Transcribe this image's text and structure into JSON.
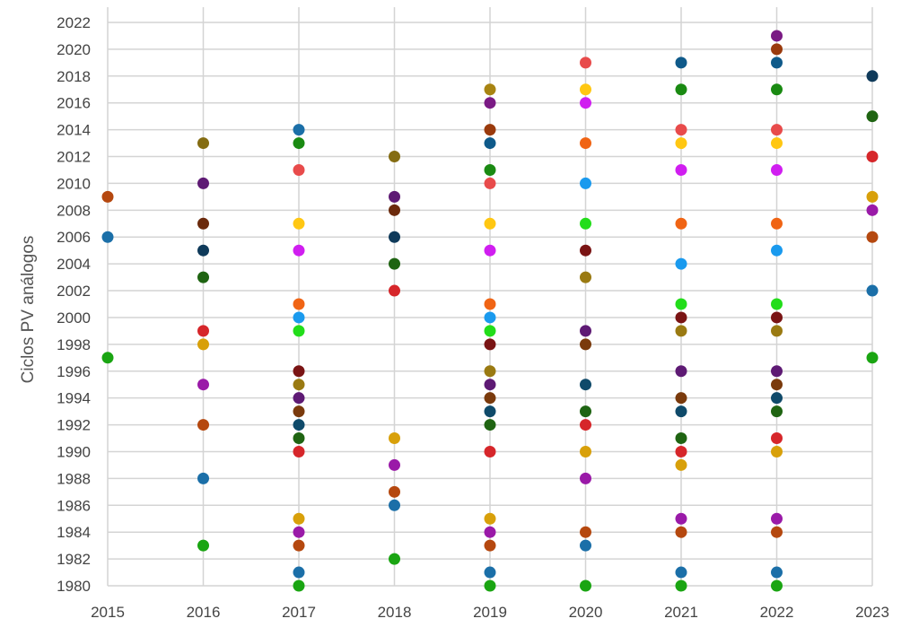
{
  "chart_data": {
    "type": "scatter",
    "title": "",
    "xlabel": "",
    "ylabel": "Ciclos PV análogos",
    "xlim": [
      2015,
      2023
    ],
    "ylim": [
      1980,
      2022
    ],
    "grid": true,
    "legend": "none",
    "x_ticks": [
      "2015",
      "2016",
      "2017",
      "2018",
      "2019",
      "2020",
      "2021",
      "2022",
      "2023"
    ],
    "y_ticks": [
      "1980",
      "1982",
      "1984",
      "1986",
      "1988",
      "1990",
      "1992",
      "1994",
      "1996",
      "1998",
      "2000",
      "2002",
      "2004",
      "2006",
      "2008",
      "2010",
      "2012",
      "2014",
      "2016",
      "2018",
      "2020",
      "2022"
    ],
    "points": [
      {
        "x": 2015,
        "y": 2009,
        "color": "#b5480f"
      },
      {
        "x": 2015,
        "y": 2006,
        "color": "#1b6fa8"
      },
      {
        "x": 2015,
        "y": 1997,
        "color": "#1aa512"
      },
      {
        "x": 2016,
        "y": 2013,
        "color": "#846c12"
      },
      {
        "x": 2016,
        "y": 2010,
        "color": "#5e1a74"
      },
      {
        "x": 2016,
        "y": 2007,
        "color": "#6b2a0c"
      },
      {
        "x": 2016,
        "y": 2005,
        "color": "#0f3a5a"
      },
      {
        "x": 2016,
        "y": 2003,
        "color": "#1f6412"
      },
      {
        "x": 2016,
        "y": 1999,
        "color": "#d6262a"
      },
      {
        "x": 2016,
        "y": 1998,
        "color": "#d8a00a"
      },
      {
        "x": 2016,
        "y": 1995,
        "color": "#9a1aa8"
      },
      {
        "x": 2016,
        "y": 1992,
        "color": "#b5480f"
      },
      {
        "x": 2016,
        "y": 1988,
        "color": "#1b6fa8"
      },
      {
        "x": 2016,
        "y": 1983,
        "color": "#1aa512"
      },
      {
        "x": 2017,
        "y": 2014,
        "color": "#1b6fa8"
      },
      {
        "x": 2017,
        "y": 2013,
        "color": "#1a8a12"
      },
      {
        "x": 2017,
        "y": 2011,
        "color": "#e84b4b"
      },
      {
        "x": 2017,
        "y": 2007,
        "color": "#ffc712"
      },
      {
        "x": 2017,
        "y": 2005,
        "color": "#d01ef0"
      },
      {
        "x": 2017,
        "y": 2001,
        "color": "#f06414"
      },
      {
        "x": 2017,
        "y": 2000,
        "color": "#1a9aee"
      },
      {
        "x": 2017,
        "y": 1999,
        "color": "#22dd1a"
      },
      {
        "x": 2017,
        "y": 1996,
        "color": "#7a1414"
      },
      {
        "x": 2017,
        "y": 1995,
        "color": "#9a7a12"
      },
      {
        "x": 2017,
        "y": 1994,
        "color": "#5e1a74"
      },
      {
        "x": 2017,
        "y": 1993,
        "color": "#7a3a0c"
      },
      {
        "x": 2017,
        "y": 1992,
        "color": "#0f4a6a"
      },
      {
        "x": 2017,
        "y": 1991,
        "color": "#1f6412"
      },
      {
        "x": 2017,
        "y": 1990,
        "color": "#d6262a"
      },
      {
        "x": 2017,
        "y": 1985,
        "color": "#d8a00a"
      },
      {
        "x": 2017,
        "y": 1984,
        "color": "#9a1aa8"
      },
      {
        "x": 2017,
        "y": 1983,
        "color": "#b5480f"
      },
      {
        "x": 2017,
        "y": 1981,
        "color": "#1b6fa8"
      },
      {
        "x": 2017,
        "y": 1980,
        "color": "#1aa512"
      },
      {
        "x": 2018,
        "y": 2012,
        "color": "#846c12"
      },
      {
        "x": 2018,
        "y": 2009,
        "color": "#5e1a74"
      },
      {
        "x": 2018,
        "y": 2008,
        "color": "#6b2a0c"
      },
      {
        "x": 2018,
        "y": 2006,
        "color": "#0f3a5a"
      },
      {
        "x": 2018,
        "y": 2004,
        "color": "#1f6412"
      },
      {
        "x": 2018,
        "y": 2002,
        "color": "#d6262a"
      },
      {
        "x": 2018,
        "y": 1991,
        "color": "#d8a00a"
      },
      {
        "x": 2018,
        "y": 1989,
        "color": "#9a1aa8"
      },
      {
        "x": 2018,
        "y": 1987,
        "color": "#b5480f"
      },
      {
        "x": 2018,
        "y": 1986,
        "color": "#1b6fa8"
      },
      {
        "x": 2018,
        "y": 1982,
        "color": "#1aa512"
      },
      {
        "x": 2019,
        "y": 2017,
        "color": "#a88412"
      },
      {
        "x": 2019,
        "y": 2016,
        "color": "#7a1a84"
      },
      {
        "x": 2019,
        "y": 2014,
        "color": "#9a3a0c"
      },
      {
        "x": 2019,
        "y": 2013,
        "color": "#0f5a8a"
      },
      {
        "x": 2019,
        "y": 2011,
        "color": "#1a8a12"
      },
      {
        "x": 2019,
        "y": 2010,
        "color": "#e84b4b"
      },
      {
        "x": 2019,
        "y": 2007,
        "color": "#ffc712"
      },
      {
        "x": 2019,
        "y": 2005,
        "color": "#d01ef0"
      },
      {
        "x": 2019,
        "y": 2001,
        "color": "#f06414"
      },
      {
        "x": 2019,
        "y": 2000,
        "color": "#1a9aee"
      },
      {
        "x": 2019,
        "y": 1999,
        "color": "#22dd1a"
      },
      {
        "x": 2019,
        "y": 1998,
        "color": "#7a1414"
      },
      {
        "x": 2019,
        "y": 1996,
        "color": "#9a7a12"
      },
      {
        "x": 2019,
        "y": 1995,
        "color": "#5e1a74"
      },
      {
        "x": 2019,
        "y": 1994,
        "color": "#7a3a0c"
      },
      {
        "x": 2019,
        "y": 1993,
        "color": "#0f4a6a"
      },
      {
        "x": 2019,
        "y": 1992,
        "color": "#1f6412"
      },
      {
        "x": 2019,
        "y": 1990,
        "color": "#d6262a"
      },
      {
        "x": 2019,
        "y": 1985,
        "color": "#d8a00a"
      },
      {
        "x": 2019,
        "y": 1984,
        "color": "#9a1aa8"
      },
      {
        "x": 2019,
        "y": 1983,
        "color": "#b5480f"
      },
      {
        "x": 2019,
        "y": 1981,
        "color": "#1b6fa8"
      },
      {
        "x": 2019,
        "y": 1980,
        "color": "#1aa512"
      },
      {
        "x": 2020,
        "y": 2019,
        "color": "#e84b4b"
      },
      {
        "x": 2020,
        "y": 2017,
        "color": "#ffc712"
      },
      {
        "x": 2020,
        "y": 2016,
        "color": "#d01ef0"
      },
      {
        "x": 2020,
        "y": 2013,
        "color": "#f06414"
      },
      {
        "x": 2020,
        "y": 2010,
        "color": "#1a9aee"
      },
      {
        "x": 2020,
        "y": 2007,
        "color": "#22dd1a"
      },
      {
        "x": 2020,
        "y": 2005,
        "color": "#7a1414"
      },
      {
        "x": 2020,
        "y": 2003,
        "color": "#9a7a12"
      },
      {
        "x": 2020,
        "y": 1999,
        "color": "#5e1a74"
      },
      {
        "x": 2020,
        "y": 1998,
        "color": "#7a3a0c"
      },
      {
        "x": 2020,
        "y": 1995,
        "color": "#0f4a6a"
      },
      {
        "x": 2020,
        "y": 1993,
        "color": "#1f6412"
      },
      {
        "x": 2020,
        "y": 1992,
        "color": "#d6262a"
      },
      {
        "x": 2020,
        "y": 1990,
        "color": "#d8a00a"
      },
      {
        "x": 2020,
        "y": 1988,
        "color": "#9a1aa8"
      },
      {
        "x": 2020,
        "y": 1984,
        "color": "#b5480f"
      },
      {
        "x": 2020,
        "y": 1983,
        "color": "#1b6fa8"
      },
      {
        "x": 2020,
        "y": 1980,
        "color": "#1aa512"
      },
      {
        "x": 2021,
        "y": 2019,
        "color": "#0f5a8a"
      },
      {
        "x": 2021,
        "y": 2017,
        "color": "#1a8a12"
      },
      {
        "x": 2021,
        "y": 2014,
        "color": "#e84b4b"
      },
      {
        "x": 2021,
        "y": 2013,
        "color": "#ffc712"
      },
      {
        "x": 2021,
        "y": 2011,
        "color": "#d01ef0"
      },
      {
        "x": 2021,
        "y": 2007,
        "color": "#f06414"
      },
      {
        "x": 2021,
        "y": 2004,
        "color": "#1a9aee"
      },
      {
        "x": 2021,
        "y": 2001,
        "color": "#22dd1a"
      },
      {
        "x": 2021,
        "y": 2000,
        "color": "#7a1414"
      },
      {
        "x": 2021,
        "y": 1999,
        "color": "#9a7a12"
      },
      {
        "x": 2021,
        "y": 1996,
        "color": "#5e1a74"
      },
      {
        "x": 2021,
        "y": 1994,
        "color": "#7a3a0c"
      },
      {
        "x": 2021,
        "y": 1993,
        "color": "#0f4a6a"
      },
      {
        "x": 2021,
        "y": 1991,
        "color": "#1f6412"
      },
      {
        "x": 2021,
        "y": 1990,
        "color": "#d6262a"
      },
      {
        "x": 2021,
        "y": 1989,
        "color": "#d8a00a"
      },
      {
        "x": 2021,
        "y": 1985,
        "color": "#9a1aa8"
      },
      {
        "x": 2021,
        "y": 1984,
        "color": "#b5480f"
      },
      {
        "x": 2021,
        "y": 1981,
        "color": "#1b6fa8"
      },
      {
        "x": 2021,
        "y": 1980,
        "color": "#1aa512"
      },
      {
        "x": 2022,
        "y": 2021,
        "color": "#7a1a84"
      },
      {
        "x": 2022,
        "y": 2020,
        "color": "#9a3a0c"
      },
      {
        "x": 2022,
        "y": 2019,
        "color": "#0f5a8a"
      },
      {
        "x": 2022,
        "y": 2017,
        "color": "#1a8a12"
      },
      {
        "x": 2022,
        "y": 2014,
        "color": "#e84b4b"
      },
      {
        "x": 2022,
        "y": 2013,
        "color": "#ffc712"
      },
      {
        "x": 2022,
        "y": 2011,
        "color": "#d01ef0"
      },
      {
        "x": 2022,
        "y": 2007,
        "color": "#f06414"
      },
      {
        "x": 2022,
        "y": 2005,
        "color": "#1a9aee"
      },
      {
        "x": 2022,
        "y": 2001,
        "color": "#22dd1a"
      },
      {
        "x": 2022,
        "y": 2000,
        "color": "#7a1414"
      },
      {
        "x": 2022,
        "y": 1999,
        "color": "#9a7a12"
      },
      {
        "x": 2022,
        "y": 1996,
        "color": "#5e1a74"
      },
      {
        "x": 2022,
        "y": 1995,
        "color": "#7a3a0c"
      },
      {
        "x": 2022,
        "y": 1994,
        "color": "#0f4a6a"
      },
      {
        "x": 2022,
        "y": 1993,
        "color": "#1f6412"
      },
      {
        "x": 2022,
        "y": 1991,
        "color": "#d6262a"
      },
      {
        "x": 2022,
        "y": 1990,
        "color": "#d8a00a"
      },
      {
        "x": 2022,
        "y": 1985,
        "color": "#9a1aa8"
      },
      {
        "x": 2022,
        "y": 1984,
        "color": "#b5480f"
      },
      {
        "x": 2022,
        "y": 1981,
        "color": "#1b6fa8"
      },
      {
        "x": 2022,
        "y": 1980,
        "color": "#1aa512"
      },
      {
        "x": 2023,
        "y": 2018,
        "color": "#0f3a5a"
      },
      {
        "x": 2023,
        "y": 2015,
        "color": "#1f6412"
      },
      {
        "x": 2023,
        "y": 2012,
        "color": "#d6262a"
      },
      {
        "x": 2023,
        "y": 2009,
        "color": "#d8a00a"
      },
      {
        "x": 2023,
        "y": 2008,
        "color": "#9a1aa8"
      },
      {
        "x": 2023,
        "y": 2006,
        "color": "#b5480f"
      },
      {
        "x": 2023,
        "y": 2002,
        "color": "#1b6fa8"
      },
      {
        "x": 2023,
        "y": 1997,
        "color": "#1aa512"
      }
    ]
  }
}
